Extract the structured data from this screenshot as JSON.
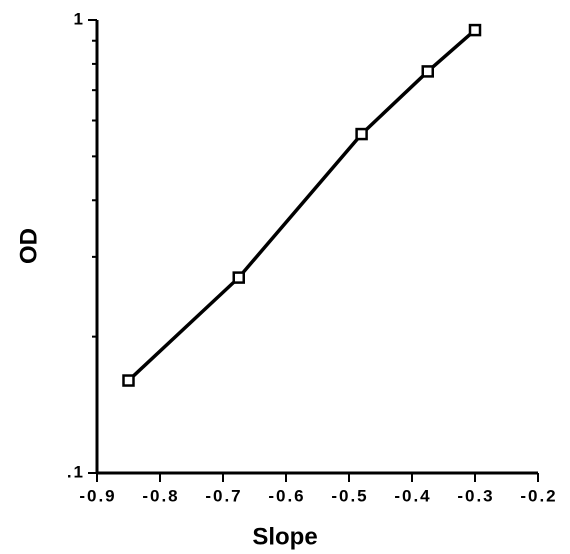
{
  "chart_data": {
    "type": "line",
    "xlabel": "Slope",
    "ylabel": "OD",
    "x": [
      -0.85,
      -0.675,
      -0.48,
      -0.375,
      -0.3
    ],
    "y": [
      0.16,
      0.27,
      0.56,
      0.77,
      0.95
    ],
    "color": "#000000",
    "ylog": true,
    "xlim": [
      -0.9,
      -0.2
    ],
    "ylim": [
      0.1,
      1
    ],
    "xticks": [
      -0.9,
      -0.8,
      -0.7,
      -0.6,
      -0.5,
      -0.4,
      -0.3,
      -0.2
    ],
    "yticks": [
      {
        "value": 0.1,
        "label": ".1"
      },
      1
    ],
    "yminor_ticks": [
      0.2,
      0.3,
      0.4,
      0.5,
      0.6,
      0.7,
      0.8,
      0.9
    ]
  }
}
